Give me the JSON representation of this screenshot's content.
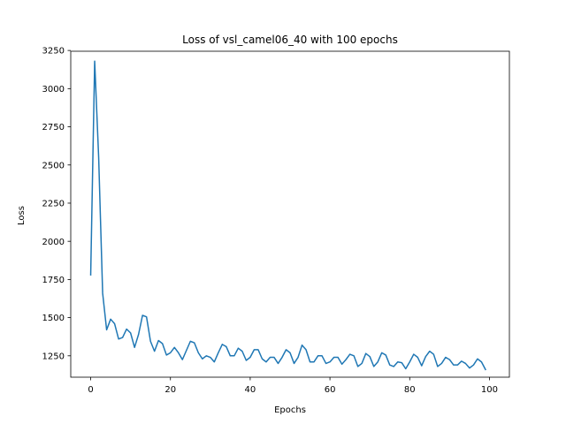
{
  "chart_data": {
    "type": "line",
    "title": "Loss of vsl_camel06_40 with 100 epochs",
    "xlabel": "Epochs",
    "ylabel": "Loss",
    "xlim": [
      -5,
      105
    ],
    "ylim": [
      1110,
      3245
    ],
    "xticks": [
      0,
      20,
      40,
      60,
      80,
      100
    ],
    "yticks": [
      1250,
      1500,
      1750,
      2000,
      2250,
      2500,
      2750,
      3000,
      3250
    ],
    "grid": false,
    "series": [
      {
        "color": "#1f77b4",
        "x": [
          0,
          1,
          2,
          3,
          4,
          5,
          6,
          7,
          8,
          9,
          10,
          11,
          12,
          13,
          14,
          15,
          16,
          17,
          18,
          19,
          20,
          21,
          22,
          23,
          24,
          25,
          26,
          27,
          28,
          29,
          30,
          31,
          32,
          33,
          34,
          35,
          36,
          37,
          38,
          39,
          40,
          41,
          42,
          43,
          44,
          45,
          46,
          47,
          48,
          49,
          50,
          51,
          52,
          53,
          54,
          55,
          56,
          57,
          58,
          59,
          60,
          61,
          62,
          63,
          64,
          65,
          66,
          67,
          68,
          69,
          70,
          71,
          72,
          73,
          74,
          75,
          76,
          77,
          78,
          79,
          80,
          81,
          82,
          83,
          84,
          85,
          86,
          87,
          88,
          89,
          90,
          91,
          92,
          93,
          94,
          95,
          96,
          97,
          98,
          99
        ],
        "values": [
          1780,
          3180,
          2550,
          1660,
          1420,
          1490,
          1460,
          1360,
          1370,
          1425,
          1400,
          1305,
          1390,
          1515,
          1505,
          1345,
          1280,
          1350,
          1330,
          1255,
          1270,
          1305,
          1270,
          1225,
          1285,
          1345,
          1335,
          1270,
          1230,
          1250,
          1240,
          1210,
          1270,
          1325,
          1310,
          1250,
          1250,
          1300,
          1280,
          1220,
          1240,
          1290,
          1290,
          1230,
          1210,
          1240,
          1240,
          1200,
          1240,
          1290,
          1270,
          1200,
          1240,
          1320,
          1290,
          1210,
          1210,
          1250,
          1250,
          1200,
          1210,
          1240,
          1240,
          1195,
          1225,
          1260,
          1250,
          1180,
          1200,
          1265,
          1245,
          1180,
          1210,
          1270,
          1255,
          1190,
          1180,
          1210,
          1205,
          1165,
          1210,
          1260,
          1240,
          1185,
          1245,
          1280,
          1260,
          1180,
          1200,
          1240,
          1225,
          1190,
          1190,
          1215,
          1200,
          1170,
          1190,
          1230,
          1210,
          1160
        ]
      }
    ]
  }
}
